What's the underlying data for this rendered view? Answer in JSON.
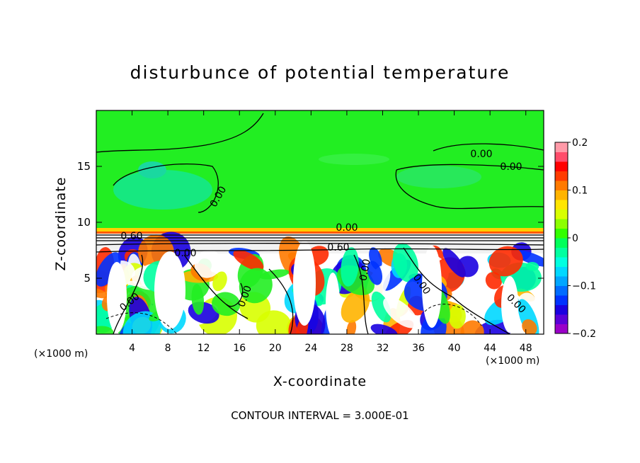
{
  "chart_data": {
    "type": "heatmap",
    "title": "disturbunce of potential temperature",
    "xlabel": "X-coordinate",
    "ylabel": "Z-coordinate",
    "xunit_left": "(×1000 m)",
    "xunit_right": "(×1000 m)",
    "xlim": [
      0,
      50
    ],
    "ylim": [
      0,
      20
    ],
    "xticks": [
      4,
      8,
      12,
      16,
      20,
      24,
      28,
      32,
      36,
      40,
      44,
      48
    ],
    "yticks": [
      5,
      10,
      15
    ],
    "colorbar": {
      "range": [
        -0.2,
        0.2
      ],
      "ticks": [
        -0.2,
        -0.1,
        0,
        0.1,
        0.2
      ],
      "colors": [
        "#9a00c8",
        "#5a00d8",
        "#1a00e0",
        "#0032ff",
        "#006cff",
        "#00a6ff",
        "#00d8ff",
        "#00ffe0",
        "#00ffa0",
        "#00ff5a",
        "#32ff00",
        "#8cff00",
        "#d8ff00",
        "#ffe600",
        "#ffb400",
        "#ff7a00",
        "#ff3c00",
        "#ff0000",
        "#ff4c6a",
        "#ff9aa8"
      ]
    },
    "contour_labels": [
      "0.00",
      "0.00",
      "0.00",
      "0.00",
      "0.00",
      "0.60",
      "0.60",
      "0.00",
      "0.00",
      "0.00",
      "0.00",
      "0.00"
    ],
    "contour_interval_text": "CONTOUR INTERVAL = 3.000E-01",
    "grid": false
  }
}
